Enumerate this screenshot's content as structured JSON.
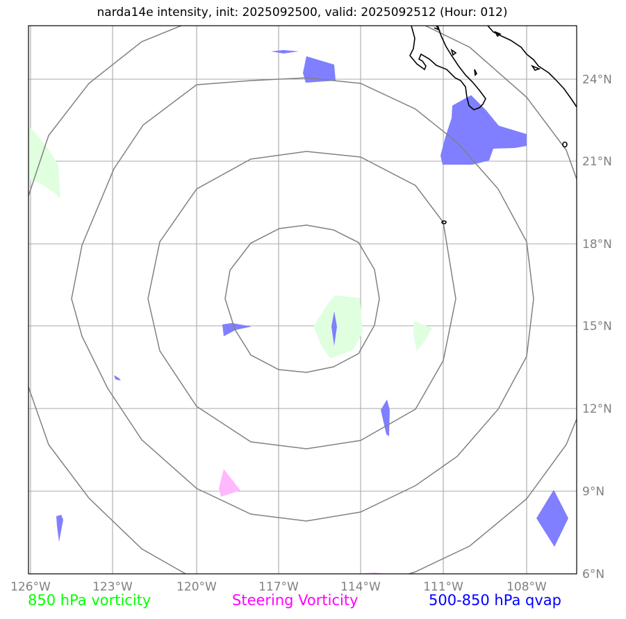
{
  "title": "narda14e intensity, init: 2025092500, valid: 2025092512 (Hour: 012)",
  "lon_labels": [
    "126°W",
    "123°W",
    "120°W",
    "117°W",
    "114°W",
    "111°W",
    "108°W"
  ],
  "lat_labels": [
    "24°N",
    "21°N",
    "18°N",
    "15°N",
    "12°N",
    "9°N",
    "6°N"
  ],
  "legend": [
    {
      "label": "850 hPa vorticity",
      "color": "#00ff00"
    },
    {
      "label": "Steering Vorticity",
      "color": "#ff00ff"
    },
    {
      "label": "500-850 hPa qvap",
      "color": "#0000ff"
    }
  ],
  "colors": {
    "vorticity_fill": "#dfffdf",
    "steering_fill": "#ffb7ff",
    "qvap_fill": "#7f7fff",
    "grid": "#a8a8a8",
    "range_rings": "#808080",
    "coastline": "#000000"
  }
}
